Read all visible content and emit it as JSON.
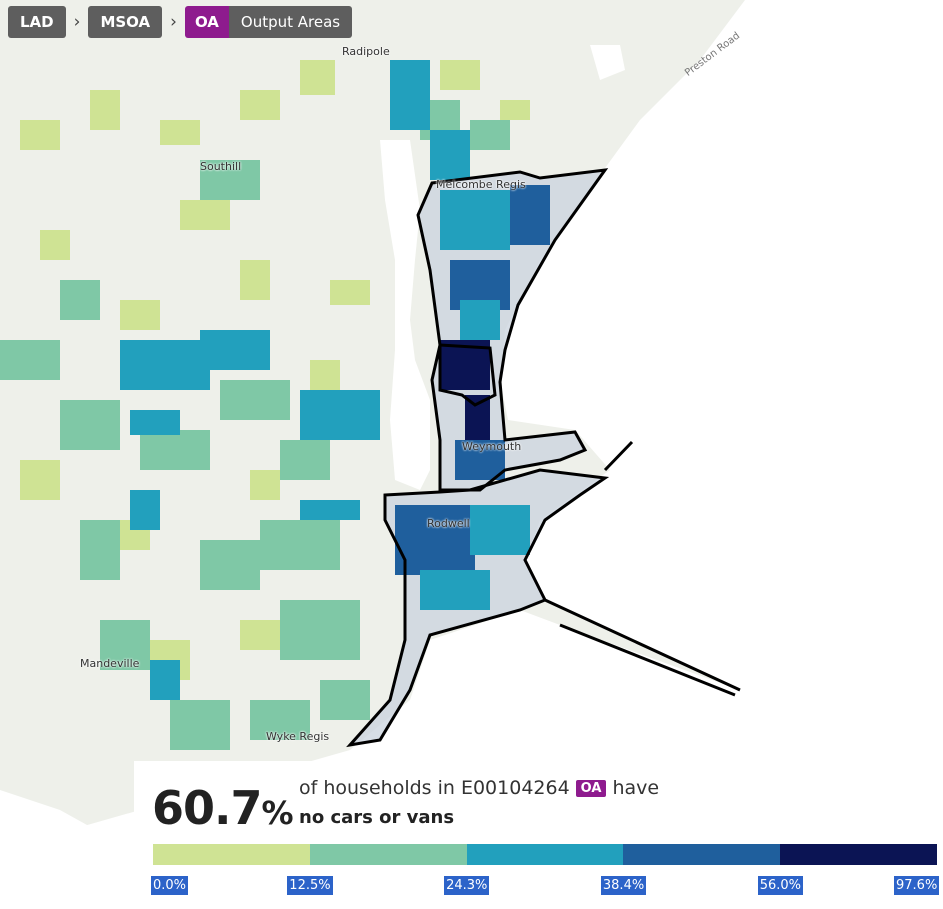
{
  "breadcrumb": {
    "lad": "LAD",
    "msoa": "MSOA",
    "oa_badge": "OA",
    "oa_name": "Output Areas"
  },
  "map_labels": {
    "radipole": "Radipole",
    "southill": "Southill",
    "melcombe_regis": "Melcombe Regis",
    "weymouth": "Weymouth",
    "rodwell": "Rodwell",
    "mandeville": "Mandeville",
    "wyke_regis": "Wyke Regis",
    "preston_road": "Preston Road"
  },
  "info_panel": {
    "value_number": "60.7",
    "value_unit": "%",
    "caption_prefix": "of households in E00104264",
    "caption_badge": "OA",
    "caption_suffix": "have",
    "caption_metric": "no cars or vans"
  },
  "legend": {
    "colors": [
      "#cfe394",
      "#7fc8a6",
      "#22a0bd",
      "#1f5f9d",
      "#0b1454"
    ],
    "breaks": [
      "0.0%",
      "12.5%",
      "24.3%",
      "38.4%",
      "56.0%",
      "97.6%"
    ],
    "break_values": [
      0.0,
      12.5,
      24.3,
      38.4,
      56.0,
      97.6
    ],
    "selected_value": 60.7,
    "comparison_value": 38.4,
    "selected_marker_color": "#000000",
    "comparison_marker_color": "#777777"
  },
  "colors": {
    "oa_accent": "#8e1b8e",
    "crumb_bg": "#5e5e5e",
    "tick_bg": "#2c63c9"
  }
}
